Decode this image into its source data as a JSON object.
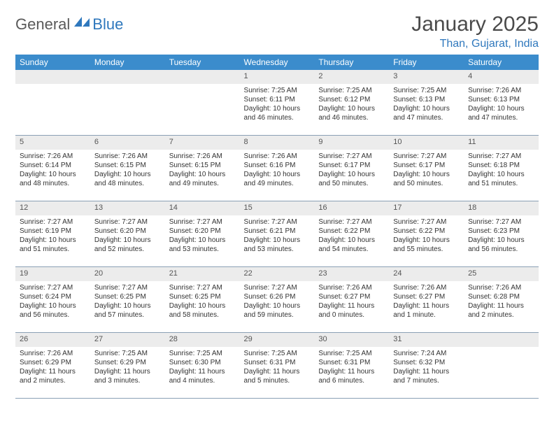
{
  "brand": {
    "part1": "General",
    "part2": "Blue"
  },
  "title": "January 2025",
  "location": "Than, Gujarat, India",
  "colors": {
    "header_bg": "#3b8ccc",
    "accent": "#2f78bd",
    "daynum_bg": "#ececec",
    "rule": "#8aa0b5",
    "text": "#333333"
  },
  "columns": [
    "Sunday",
    "Monday",
    "Tuesday",
    "Wednesday",
    "Thursday",
    "Friday",
    "Saturday"
  ],
  "weeks": [
    [
      null,
      null,
      null,
      {
        "n": "1",
        "sr": "Sunrise: 7:25 AM",
        "ss": "Sunset: 6:11 PM",
        "d1": "Daylight: 10 hours",
        "d2": "and 46 minutes."
      },
      {
        "n": "2",
        "sr": "Sunrise: 7:25 AM",
        "ss": "Sunset: 6:12 PM",
        "d1": "Daylight: 10 hours",
        "d2": "and 46 minutes."
      },
      {
        "n": "3",
        "sr": "Sunrise: 7:25 AM",
        "ss": "Sunset: 6:13 PM",
        "d1": "Daylight: 10 hours",
        "d2": "and 47 minutes."
      },
      {
        "n": "4",
        "sr": "Sunrise: 7:26 AM",
        "ss": "Sunset: 6:13 PM",
        "d1": "Daylight: 10 hours",
        "d2": "and 47 minutes."
      }
    ],
    [
      {
        "n": "5",
        "sr": "Sunrise: 7:26 AM",
        "ss": "Sunset: 6:14 PM",
        "d1": "Daylight: 10 hours",
        "d2": "and 48 minutes."
      },
      {
        "n": "6",
        "sr": "Sunrise: 7:26 AM",
        "ss": "Sunset: 6:15 PM",
        "d1": "Daylight: 10 hours",
        "d2": "and 48 minutes."
      },
      {
        "n": "7",
        "sr": "Sunrise: 7:26 AM",
        "ss": "Sunset: 6:15 PM",
        "d1": "Daylight: 10 hours",
        "d2": "and 49 minutes."
      },
      {
        "n": "8",
        "sr": "Sunrise: 7:26 AM",
        "ss": "Sunset: 6:16 PM",
        "d1": "Daylight: 10 hours",
        "d2": "and 49 minutes."
      },
      {
        "n": "9",
        "sr": "Sunrise: 7:27 AM",
        "ss": "Sunset: 6:17 PM",
        "d1": "Daylight: 10 hours",
        "d2": "and 50 minutes."
      },
      {
        "n": "10",
        "sr": "Sunrise: 7:27 AM",
        "ss": "Sunset: 6:17 PM",
        "d1": "Daylight: 10 hours",
        "d2": "and 50 minutes."
      },
      {
        "n": "11",
        "sr": "Sunrise: 7:27 AM",
        "ss": "Sunset: 6:18 PM",
        "d1": "Daylight: 10 hours",
        "d2": "and 51 minutes."
      }
    ],
    [
      {
        "n": "12",
        "sr": "Sunrise: 7:27 AM",
        "ss": "Sunset: 6:19 PM",
        "d1": "Daylight: 10 hours",
        "d2": "and 51 minutes."
      },
      {
        "n": "13",
        "sr": "Sunrise: 7:27 AM",
        "ss": "Sunset: 6:20 PM",
        "d1": "Daylight: 10 hours",
        "d2": "and 52 minutes."
      },
      {
        "n": "14",
        "sr": "Sunrise: 7:27 AM",
        "ss": "Sunset: 6:20 PM",
        "d1": "Daylight: 10 hours",
        "d2": "and 53 minutes."
      },
      {
        "n": "15",
        "sr": "Sunrise: 7:27 AM",
        "ss": "Sunset: 6:21 PM",
        "d1": "Daylight: 10 hours",
        "d2": "and 53 minutes."
      },
      {
        "n": "16",
        "sr": "Sunrise: 7:27 AM",
        "ss": "Sunset: 6:22 PM",
        "d1": "Daylight: 10 hours",
        "d2": "and 54 minutes."
      },
      {
        "n": "17",
        "sr": "Sunrise: 7:27 AM",
        "ss": "Sunset: 6:22 PM",
        "d1": "Daylight: 10 hours",
        "d2": "and 55 minutes."
      },
      {
        "n": "18",
        "sr": "Sunrise: 7:27 AM",
        "ss": "Sunset: 6:23 PM",
        "d1": "Daylight: 10 hours",
        "d2": "and 56 minutes."
      }
    ],
    [
      {
        "n": "19",
        "sr": "Sunrise: 7:27 AM",
        "ss": "Sunset: 6:24 PM",
        "d1": "Daylight: 10 hours",
        "d2": "and 56 minutes."
      },
      {
        "n": "20",
        "sr": "Sunrise: 7:27 AM",
        "ss": "Sunset: 6:25 PM",
        "d1": "Daylight: 10 hours",
        "d2": "and 57 minutes."
      },
      {
        "n": "21",
        "sr": "Sunrise: 7:27 AM",
        "ss": "Sunset: 6:25 PM",
        "d1": "Daylight: 10 hours",
        "d2": "and 58 minutes."
      },
      {
        "n": "22",
        "sr": "Sunrise: 7:27 AM",
        "ss": "Sunset: 6:26 PM",
        "d1": "Daylight: 10 hours",
        "d2": "and 59 minutes."
      },
      {
        "n": "23",
        "sr": "Sunrise: 7:26 AM",
        "ss": "Sunset: 6:27 PM",
        "d1": "Daylight: 11 hours",
        "d2": "and 0 minutes."
      },
      {
        "n": "24",
        "sr": "Sunrise: 7:26 AM",
        "ss": "Sunset: 6:27 PM",
        "d1": "Daylight: 11 hours",
        "d2": "and 1 minute."
      },
      {
        "n": "25",
        "sr": "Sunrise: 7:26 AM",
        "ss": "Sunset: 6:28 PM",
        "d1": "Daylight: 11 hours",
        "d2": "and 2 minutes."
      }
    ],
    [
      {
        "n": "26",
        "sr": "Sunrise: 7:26 AM",
        "ss": "Sunset: 6:29 PM",
        "d1": "Daylight: 11 hours",
        "d2": "and 2 minutes."
      },
      {
        "n": "27",
        "sr": "Sunrise: 7:25 AM",
        "ss": "Sunset: 6:29 PM",
        "d1": "Daylight: 11 hours",
        "d2": "and 3 minutes."
      },
      {
        "n": "28",
        "sr": "Sunrise: 7:25 AM",
        "ss": "Sunset: 6:30 PM",
        "d1": "Daylight: 11 hours",
        "d2": "and 4 minutes."
      },
      {
        "n": "29",
        "sr": "Sunrise: 7:25 AM",
        "ss": "Sunset: 6:31 PM",
        "d1": "Daylight: 11 hours",
        "d2": "and 5 minutes."
      },
      {
        "n": "30",
        "sr": "Sunrise: 7:25 AM",
        "ss": "Sunset: 6:31 PM",
        "d1": "Daylight: 11 hours",
        "d2": "and 6 minutes."
      },
      {
        "n": "31",
        "sr": "Sunrise: 7:24 AM",
        "ss": "Sunset: 6:32 PM",
        "d1": "Daylight: 11 hours",
        "d2": "and 7 minutes."
      },
      null
    ]
  ]
}
